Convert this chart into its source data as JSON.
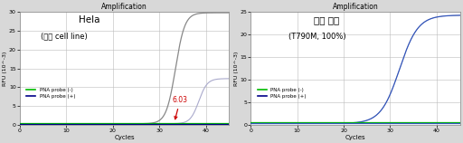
{
  "title": "Amplification",
  "xlabel": "Cycles",
  "ylabel": "RFU (10^-3)",
  "xlim": [
    0,
    45
  ],
  "ylim": [
    0,
    30
  ],
  "ylim_right": [
    0,
    25
  ],
  "yticks_left": [
    0,
    5,
    10,
    15,
    20,
    25,
    30
  ],
  "yticks_right": [
    0,
    5,
    10,
    15,
    20,
    25
  ],
  "xticks": [
    0,
    10,
    20,
    30,
    40
  ],
  "bg_color": "#d8d8d8",
  "plot_bg": "#ffffff",
  "grid_color": "#bbbbbb",
  "left_title_line1": "Hela",
  "left_title_line2": "(정상 cell line)",
  "right_title_line1": "합성 타겟",
  "right_title_line2": "(T790M, 100%)",
  "legend_labels": [
    "PNA probe (-)",
    "PNA probe (+)"
  ],
  "legend_colors_left": [
    "#00bb00",
    "#000088"
  ],
  "legend_colors_right": [
    "#00bb00",
    "#000088"
  ],
  "annotation_text": "6.03",
  "annotation_color": "#cc0000",
  "left_curve_minus_color": "#888888",
  "left_curve_plus_color": "#aaaacc",
  "left_flat_minus_color": "#00bb00",
  "left_flat_plus_color": "#000088",
  "right_curve_color": "#3355bb",
  "right_flat_minus_color": "#00bb00",
  "right_flat_plus_color": "#3355bb"
}
